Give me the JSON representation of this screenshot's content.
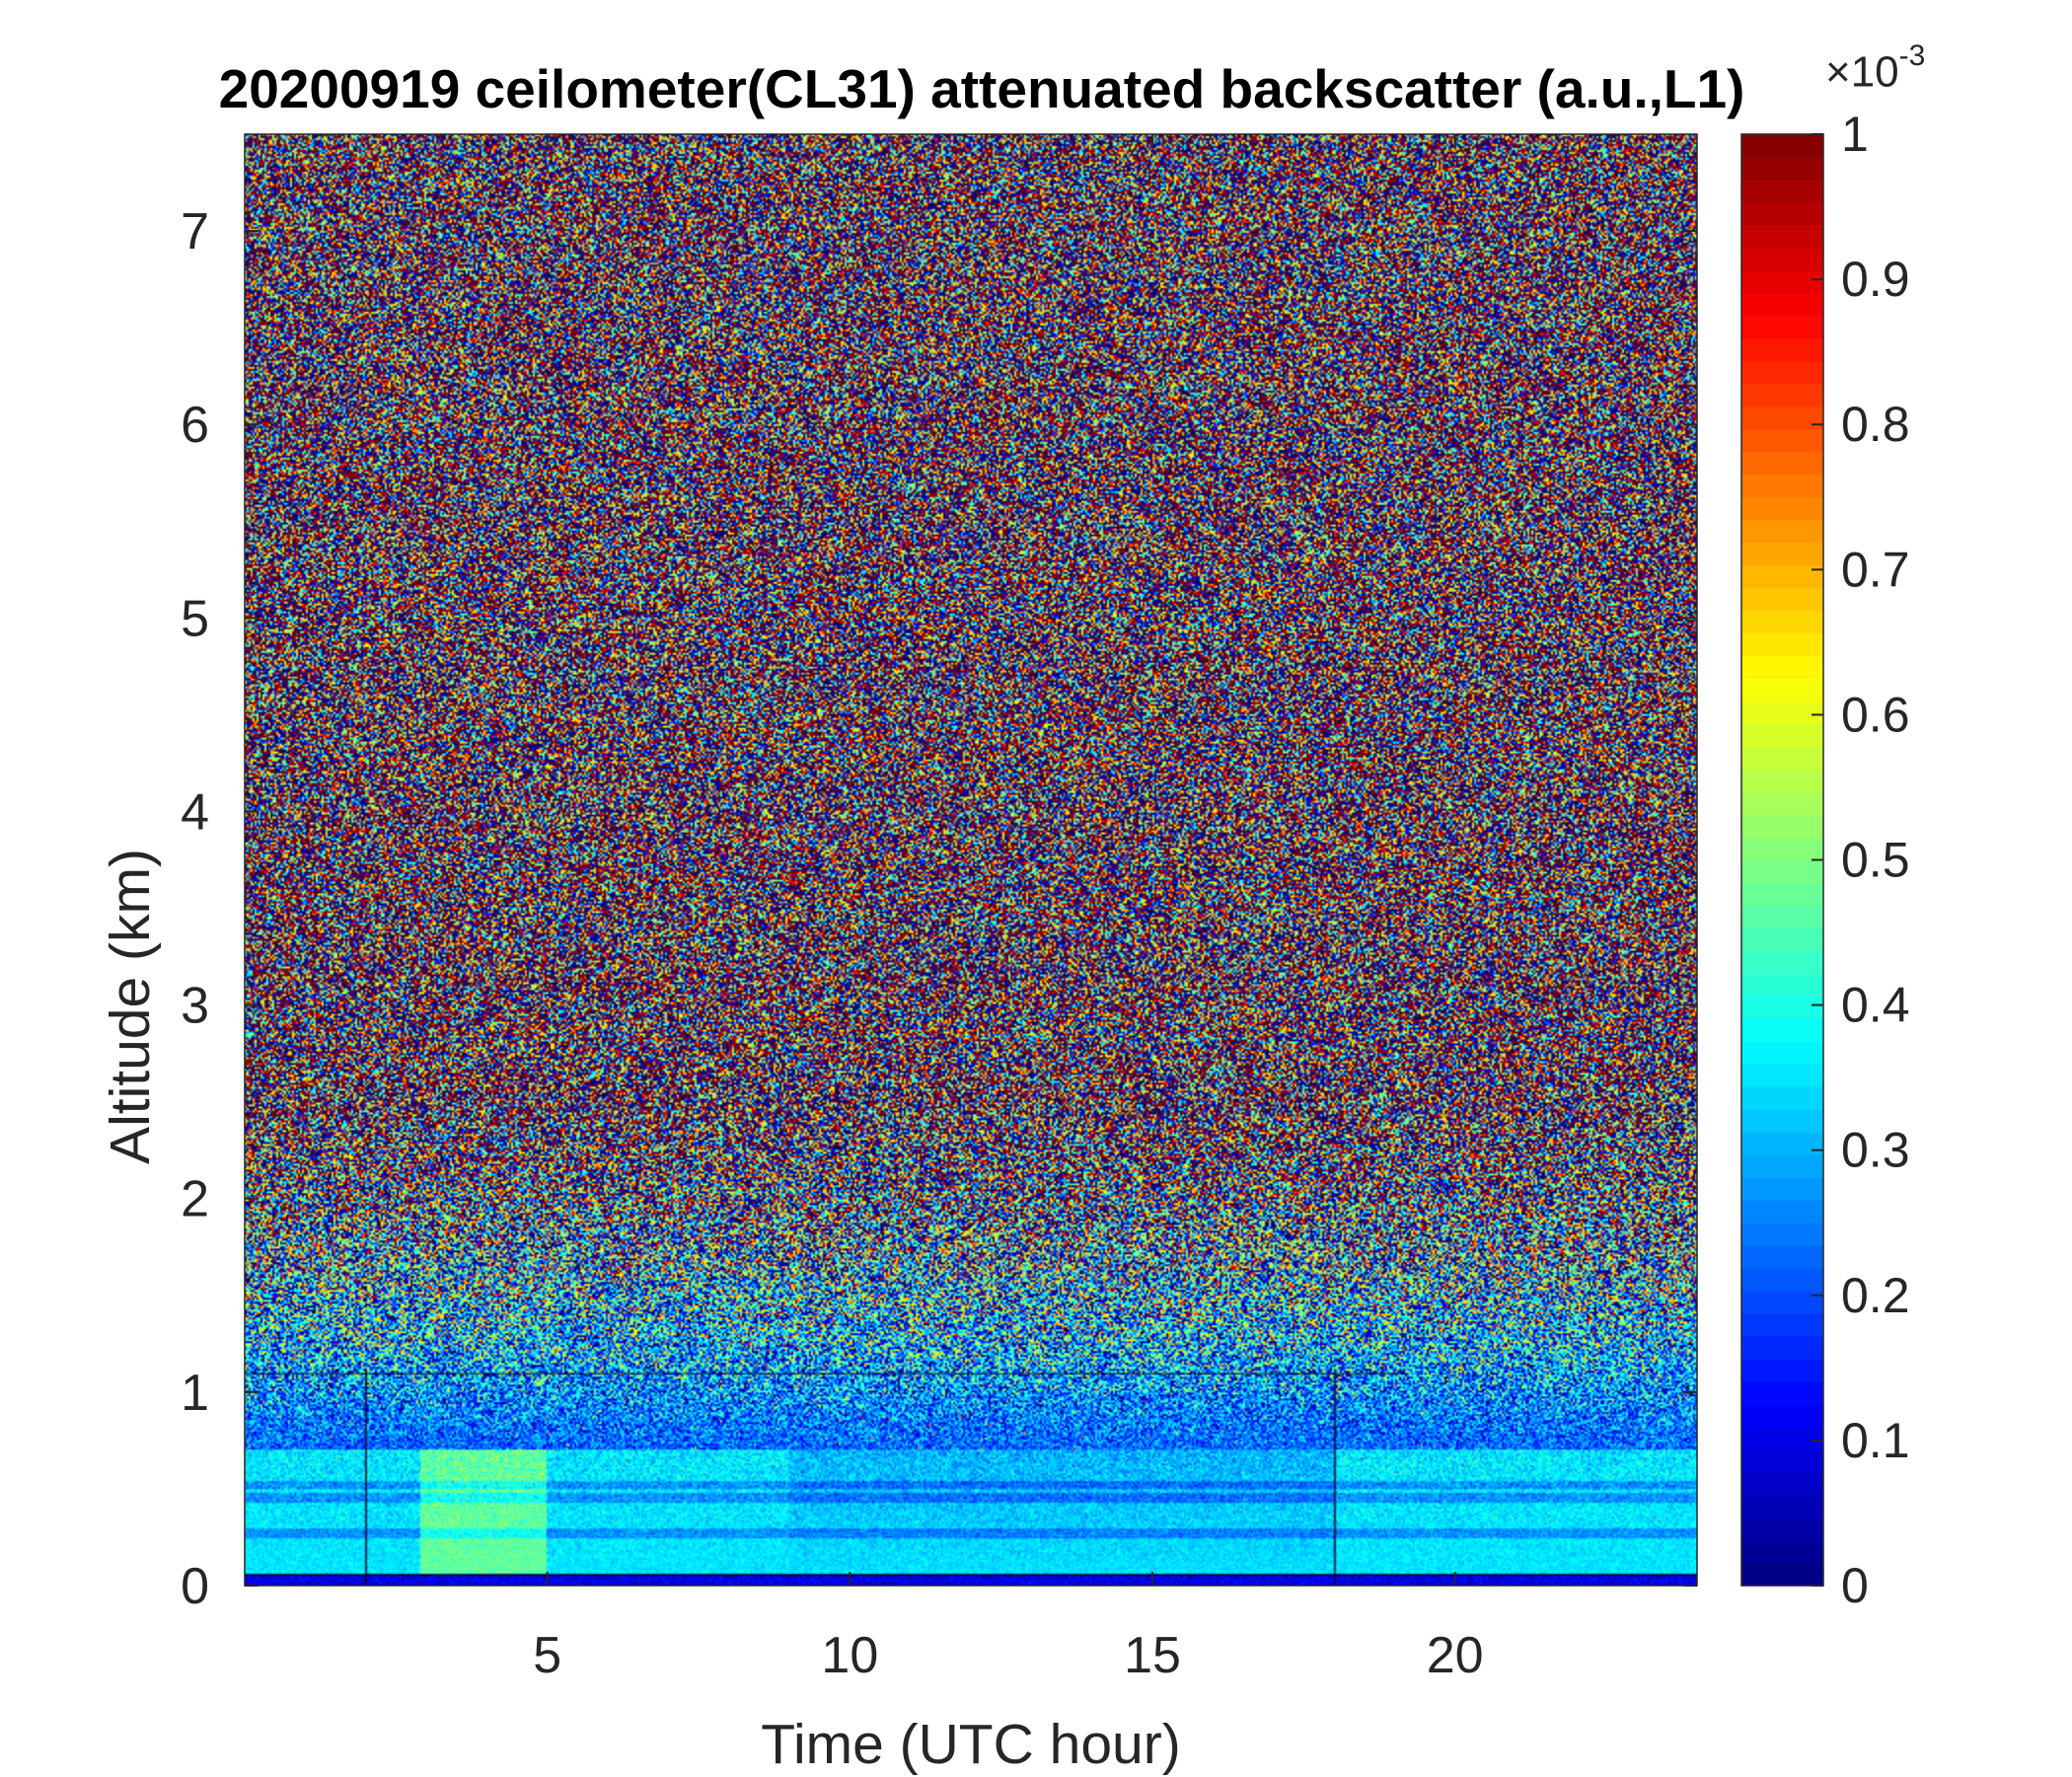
{
  "chart_data": {
    "type": "heatmap",
    "title": "20200919 ceilometer(CL31) attenuated backscatter (a.u.,L1)",
    "xlabel": "Time (UTC hour)",
    "ylabel": "Altitude (km)",
    "xlim": [
      0,
      24
    ],
    "ylim": [
      0,
      7.5
    ],
    "x_ticks": [
      5,
      10,
      15,
      20
    ],
    "x_tick_labels": [
      "5",
      "10",
      "15",
      "20"
    ],
    "y_ticks": [
      0,
      1,
      2,
      3,
      4,
      5,
      6,
      7
    ],
    "y_tick_labels": [
      "0",
      "1",
      "2",
      "3",
      "4",
      "5",
      "6",
      "7"
    ],
    "colorbar": {
      "colormap": "jet",
      "range": [
        0,
        0.001
      ],
      "exponent_label": "×10",
      "exponent": "-3",
      "ticks": [
        0,
        0.1,
        0.2,
        0.3,
        0.4,
        0.5,
        0.6,
        0.7,
        0.8,
        0.9,
        1
      ],
      "tick_labels": [
        "0",
        "0.1",
        "0.2",
        "0.3",
        "0.4",
        "0.5",
        "0.6",
        "0.7",
        "0.8",
        "0.9",
        "1"
      ]
    },
    "field_description": {
      "boundary_layer_top_km": 0.7,
      "surface_layer_value": 0.35,
      "aerosol_layers_km": [
        0.27,
        0.45,
        0.52
      ],
      "noise_dominated_above_km": 2.5,
      "vertical_lines_hours": [
        2,
        18
      ],
      "horizontal_line_km": 1.1
    }
  },
  "colors": {
    "axis": "#262626",
    "background": "#ffffff"
  }
}
